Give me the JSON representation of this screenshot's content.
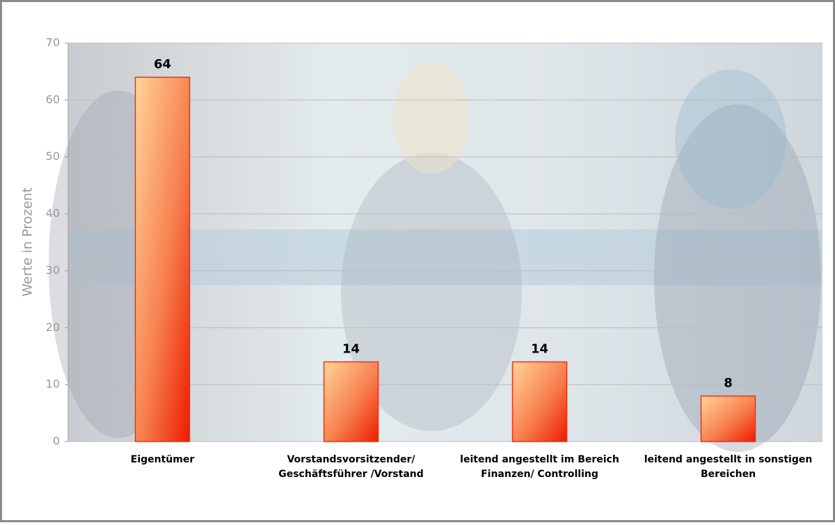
{
  "chart_data": {
    "type": "bar",
    "y_label": "Werte in Prozent",
    "categories": [
      [
        "Eigentümer"
      ],
      [
        "Vorstandsvorsitzender/",
        "Geschäftsführer /Vorstand"
      ],
      [
        "leitend angestellt im Bereich",
        "Finanzen/ Controlling"
      ],
      [
        "leitend angestellt in sonstigen",
        "Bereichen"
      ]
    ],
    "values": [
      64,
      14,
      14,
      8
    ],
    "color": "#f03010",
    "ylim": [
      0,
      70
    ],
    "yticks": [
      0,
      10,
      20,
      30,
      40,
      50,
      60,
      70
    ],
    "grid": true
  }
}
